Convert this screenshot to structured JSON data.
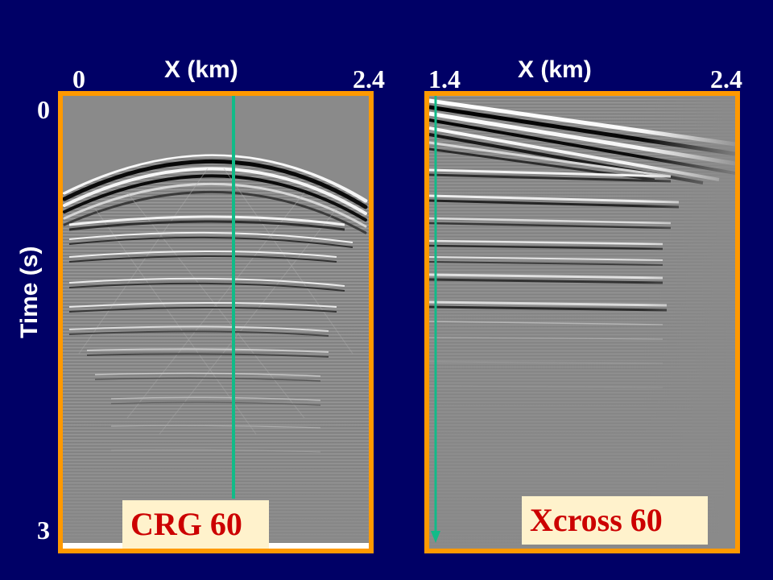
{
  "left_panel": {
    "x_axis_title": "X (km)",
    "x_min_label": "0",
    "x_max_label": "2.4",
    "caption": "CRG 60",
    "trace_color": "#11bb88"
  },
  "right_panel": {
    "x_axis_title": "X (km)",
    "x_min_label": "1.4",
    "x_max_label": "2.4",
    "caption": "Xcross 60",
    "arrow_color": "#11bb88"
  },
  "y_axis": {
    "title": "Time (s)",
    "top_label": "0",
    "bottom_label": "3"
  },
  "colors": {
    "background": "#000066",
    "panel_border": "#ff9900",
    "caption_bg": "#fff2cc",
    "caption_text": "#cc0000"
  }
}
